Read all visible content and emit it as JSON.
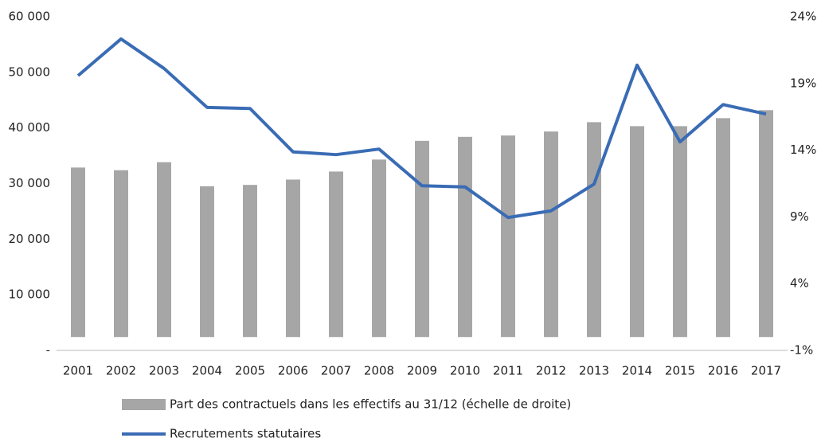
{
  "chart_data": {
    "type": "bar",
    "categories": [
      "2001",
      "2002",
      "2003",
      "2004",
      "2005",
      "2006",
      "2007",
      "2008",
      "2009",
      "2010",
      "2011",
      "2012",
      "2013",
      "2014",
      "2015",
      "2016",
      "2017"
    ],
    "series": [
      {
        "name": "Part des contractuels dans les effectifs au 31/12 (échelle de droite)",
        "type": "bar",
        "axis": "y2",
        "color": "#a6a6a6",
        "values": [
          12.7,
          12.5,
          13.1,
          11.3,
          11.4,
          11.8,
          12.4,
          13.3,
          14.7,
          15.0,
          15.1,
          15.4,
          16.1,
          15.8,
          15.8,
          16.4,
          17.0
        ]
      },
      {
        "name": "Recrutements statutaires",
        "type": "line",
        "axis": "y",
        "color": "#3a6cb5",
        "values": [
          49400,
          56000,
          50700,
          43700,
          43500,
          35700,
          35200,
          36200,
          29600,
          29400,
          23900,
          25100,
          29900,
          51300,
          37500,
          44200,
          42500
        ]
      }
    ],
    "ylim": [
      0,
      60000
    ],
    "yticks": [
      {
        "value": 0,
        "label": "-"
      },
      {
        "value": 10000,
        "label": "10 000"
      },
      {
        "value": 20000,
        "label": "20 000"
      },
      {
        "value": 30000,
        "label": "30 000"
      },
      {
        "value": 40000,
        "label": "40 000"
      },
      {
        "value": 50000,
        "label": "50 000"
      },
      {
        "value": 60000,
        "label": "60 000"
      }
    ],
    "y2lim": [
      -1,
      24
    ],
    "y2ticks": [
      {
        "value": -1,
        "label": "-1%"
      },
      {
        "value": 4,
        "label": "4%"
      },
      {
        "value": 9,
        "label": "9%"
      },
      {
        "value": 14,
        "label": "14%"
      },
      {
        "value": 19,
        "label": "19%"
      },
      {
        "value": 24,
        "label": "24%"
      }
    ],
    "legend": "bottom"
  }
}
